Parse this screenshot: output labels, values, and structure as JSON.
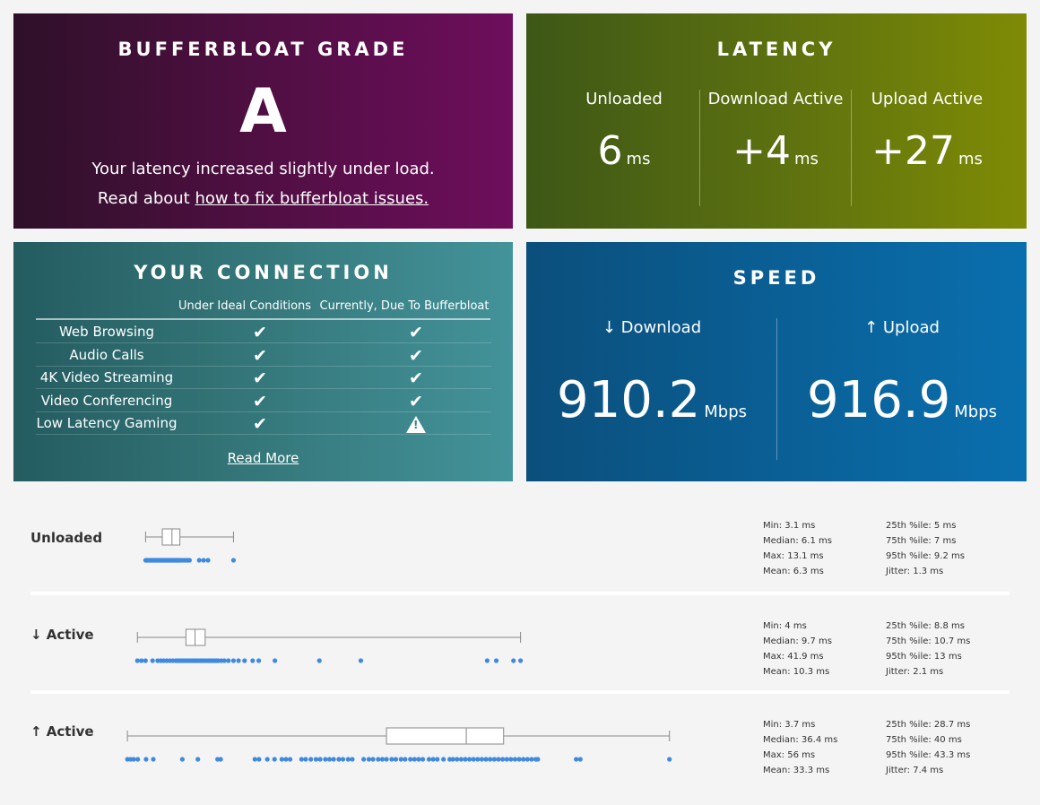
{
  "grade": {
    "title": "BUFFERBLOAT GRADE",
    "letter": "A",
    "line1": "Your latency increased slightly under load.",
    "line2_prefix": "Read about ",
    "line2_link": "how to fix bufferbloat issues."
  },
  "latency": {
    "title": "LATENCY",
    "columns": [
      {
        "label": "Unloaded",
        "value": "6",
        "unit": "ms"
      },
      {
        "label": "Download Active",
        "value": "+4",
        "unit": "ms"
      },
      {
        "label": "Upload Active",
        "value": "+27",
        "unit": "ms"
      }
    ]
  },
  "connection": {
    "title": "YOUR CONNECTION",
    "col_ideal": "Under Ideal Conditions",
    "col_current": "Currently, Due To Bufferbloat",
    "rows": [
      {
        "name": "Web Browsing",
        "ideal": "ok",
        "current": "ok"
      },
      {
        "name": "Audio Calls",
        "ideal": "ok",
        "current": "ok"
      },
      {
        "name": "4K Video Streaming",
        "ideal": "ok",
        "current": "ok"
      },
      {
        "name": "Video Conferencing",
        "ideal": "ok",
        "current": "ok"
      },
      {
        "name": "Low Latency Gaming",
        "ideal": "ok",
        "current": "warning"
      }
    ],
    "check_glyph": "✔",
    "read_more": "Read More"
  },
  "speed": {
    "title": "SPEED",
    "download_label": "↓ Download",
    "download_value": "910.2",
    "upload_label": "↑ Upload",
    "upload_value": "916.9",
    "unit": "Mbps"
  },
  "plots": {
    "colors": {
      "dot": "#3f8ae0",
      "box": "#888888"
    },
    "rows": [
      {
        "label": "Unloaded",
        "min": 3.1,
        "q1": 5,
        "median": 6.1,
        "q3": 7,
        "max": 13.1,
        "stats_left": [
          "Min: 3.1 ms",
          "Median: 6.1 ms",
          "Max: 13.1 ms",
          "Mean: 6.3 ms"
        ],
        "stats_right": [
          "25th %ile: 5 ms",
          "75th %ile: 7 ms",
          "95th %ile: 9.2 ms",
          "Jitter: 1.3 ms"
        ],
        "samples": [
          3.1,
          3.2,
          3.3,
          3.4,
          3.5,
          3.6,
          3.7,
          3.8,
          3.9,
          4.0,
          4.1,
          4.2,
          4.3,
          4.4,
          4.5,
          4.6,
          4.7,
          4.8,
          4.9,
          5.0,
          5.1,
          5.2,
          5.3,
          5.4,
          5.5,
          5.6,
          5.7,
          5.8,
          5.9,
          6.0,
          6.1,
          6.2,
          6.3,
          6.4,
          6.5,
          6.6,
          6.7,
          6.8,
          6.9,
          7.0,
          7.1,
          7.3,
          7.5,
          7.7,
          7.9,
          8.1,
          9.2,
          9.7,
          10.2,
          13.1
        ]
      },
      {
        "label": "↓ Active",
        "min": 4,
        "q1": 8.8,
        "median": 9.7,
        "q3": 10.7,
        "max": 41.9,
        "stats_left": [
          "Min: 4 ms",
          "Median: 9.7 ms",
          "Max: 41.9 ms",
          "Mean: 10.3 ms"
        ],
        "stats_right": [
          "25th %ile: 8.8 ms",
          "75th %ile: 10.7 ms",
          "95th %ile: 13 ms",
          "Jitter: 2.1 ms"
        ],
        "samples": [
          4.0,
          4.4,
          4.8,
          5.5,
          6.0,
          6.3,
          6.6,
          6.9,
          7.2,
          7.5,
          7.8,
          8.0,
          8.2,
          8.4,
          8.6,
          8.8,
          9.0,
          9.2,
          9.4,
          9.6,
          9.8,
          10.0,
          10.2,
          10.4,
          10.6,
          10.8,
          11.0,
          11.2,
          11.4,
          11.6,
          11.8,
          12.0,
          12.3,
          12.6,
          13.0,
          13.5,
          14.0,
          14.6,
          15.4,
          16.0,
          17.6,
          22.0,
          26.1,
          38.6,
          39.5,
          41.2,
          41.9
        ]
      },
      {
        "label": "↑ Active",
        "min": 3.7,
        "q1": 28.7,
        "median": 36.4,
        "q3": 40,
        "max": 56,
        "stats_left": [
          "Min: 3.7 ms",
          "Median: 36.4 ms",
          "Max: 56 ms",
          "Mean: 33.3 ms"
        ],
        "stats_right": [
          "25th %ile: 28.7 ms",
          "75th %ile: 40 ms",
          "95th %ile: 43.3 ms",
          "Jitter: 7.4 ms"
        ],
        "samples": [
          3.7,
          4.0,
          4.3,
          4.7,
          5.5,
          6.2,
          9.0,
          10.5,
          12.4,
          12.7,
          16.0,
          16.4,
          17.2,
          17.9,
          18.6,
          19.0,
          19.4,
          20.5,
          20.9,
          21.4,
          21.9,
          22.3,
          22.8,
          23.2,
          23.6,
          24.1,
          24.5,
          25.0,
          25.4,
          26.5,
          27.0,
          27.4,
          27.9,
          28.3,
          28.7,
          29.2,
          29.6,
          30.1,
          30.5,
          31.0,
          31.4,
          31.8,
          32.2,
          32.8,
          33.2,
          33.6,
          34.2,
          34.8,
          35.1,
          35.5,
          35.9,
          36.3,
          36.7,
          37.1,
          37.5,
          37.9,
          38.3,
          38.7,
          39.1,
          39.5,
          39.9,
          40.3,
          40.7,
          41.1,
          41.5,
          41.9,
          42.3,
          42.7,
          43.1,
          43.3,
          47.0,
          47.4,
          56.0
        ]
      }
    ]
  }
}
